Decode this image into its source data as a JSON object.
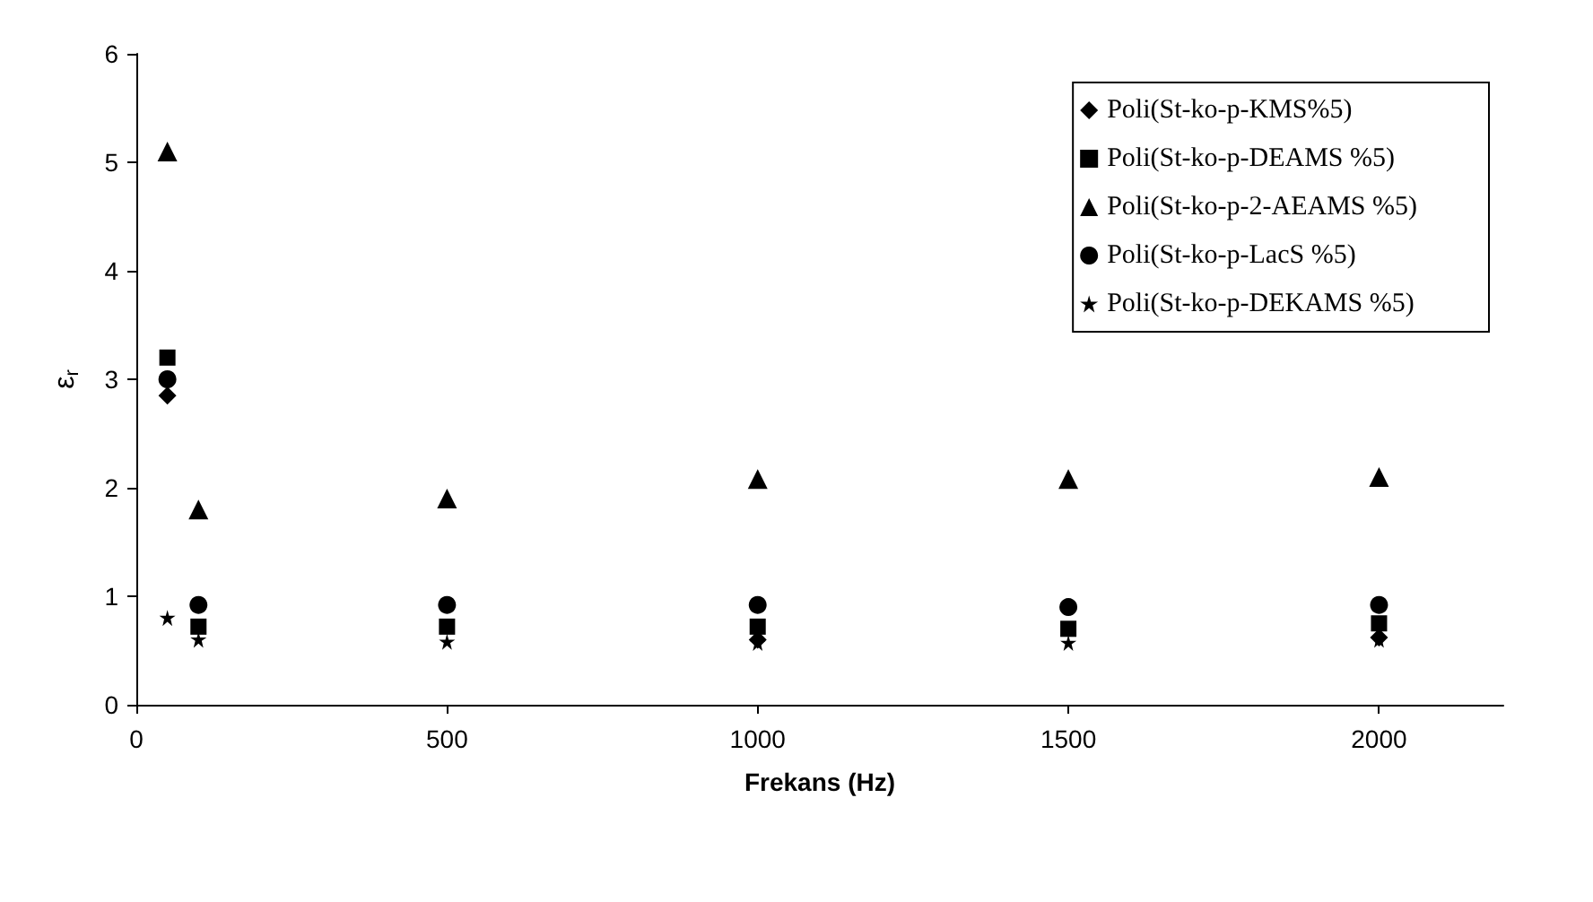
{
  "chart_data": {
    "type": "scatter",
    "xlabel": "Frekans (Hz)",
    "ylabel": "ε$_{r}$",
    "x": [
      50,
      100,
      500,
      1000,
      1500,
      2000
    ],
    "xlim": [
      0,
      2200
    ],
    "xticks": [
      0,
      500,
      1000,
      1500,
      2000
    ],
    "ylim": [
      0,
      6
    ],
    "yticks": [
      0,
      1,
      2,
      3,
      4,
      5,
      6
    ],
    "grid": false,
    "legend": "top right",
    "series": [
      {
        "name": "Poli(St-ko-p-KMS%5)",
        "color": "#000000",
        "marker": "diamond",
        "values": [
          2.85,
          null,
          null,
          0.6,
          null,
          0.62
        ]
      },
      {
        "name": "Poli(St-ko-p-DEAMS %5)",
        "color": "#000000",
        "marker": "square",
        "values": [
          3.2,
          0.72,
          0.72,
          0.72,
          0.7,
          0.75
        ]
      },
      {
        "name": "Poli(St-ko-p-2-AEAMS %5)",
        "color": "#000000",
        "marker": "triangle",
        "values": [
          5.1,
          1.8,
          1.9,
          2.08,
          2.08,
          2.1
        ]
      },
      {
        "name": "Poli(St-ko-p-LacS %5)",
        "color": "#000000",
        "marker": "circle",
        "values": [
          3.0,
          0.92,
          0.92,
          0.92,
          0.9,
          0.92
        ]
      },
      {
        "name": "Poli(St-ko-p-DEKAMS %5)",
        "color": "#000000",
        "marker": "star",
        "values": [
          0.8,
          0.6,
          0.58,
          0.57,
          0.57,
          0.6
        ]
      }
    ]
  }
}
